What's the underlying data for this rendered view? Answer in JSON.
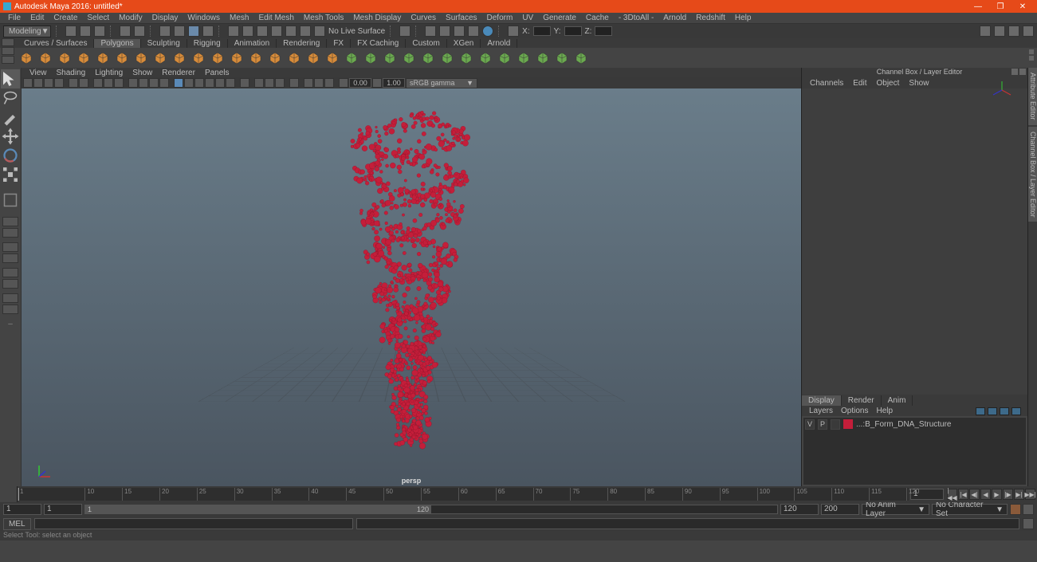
{
  "app": {
    "title": "Autodesk Maya 2016: untitled*"
  },
  "menubar": [
    "File",
    "Edit",
    "Create",
    "Select",
    "Modify",
    "Display",
    "Windows",
    "Mesh",
    "Edit Mesh",
    "Mesh Tools",
    "Mesh Display",
    "Curves",
    "Surfaces",
    "Deform",
    "UV",
    "Generate",
    "Cache",
    "- 3DtoAll -",
    "Arnold",
    "Redshift",
    "Help"
  ],
  "workspace": "Modeling",
  "status": {
    "snap_label": "No Live Surface",
    "x_label": "X:",
    "y_label": "Y:",
    "z_label": "Z:",
    "x_val": "",
    "y_val": "",
    "z_val": ""
  },
  "shelf_tabs": [
    "Curves / Surfaces",
    "Polygons",
    "Sculpting",
    "Rigging",
    "Animation",
    "Rendering",
    "FX",
    "FX Caching",
    "Custom",
    "XGen",
    "Arnold"
  ],
  "shelf_active": 1,
  "shelf_icon_color": "#d68b3a",
  "shelf_icon_color2": "#6aa84f",
  "vp_menus": [
    "View",
    "Shading",
    "Lighting",
    "Show",
    "Renderer",
    "Panels"
  ],
  "vp_toolbar": {
    "num1_label": "",
    "num1": "0.00",
    "num2_label": "",
    "num2": "1.00",
    "gamma_sel": "sRGB gamma"
  },
  "viewport": {
    "label": "persp",
    "dnaColor": "#c41e3a",
    "grid_color": "#333333",
    "bg_top": "#6a7d8a",
    "bg_bottom": "#4a5560"
  },
  "channel_box": {
    "title": "Channel Box / Layer Editor",
    "menus": [
      "Channels",
      "Edit",
      "Object",
      "Show"
    ]
  },
  "layer_tabs": [
    "Display",
    "Render",
    "Anim"
  ],
  "layer_active": 0,
  "layer_menus": [
    "Layers",
    "Options",
    "Help"
  ],
  "layer": {
    "row": {
      "v": "V",
      "p": "P",
      "blank": "",
      "name": "...:B_Form_DNA_Structure",
      "swatch": "#c41e3a"
    }
  },
  "right_vtabs": [
    "Attribute Editor",
    "Channel Box / Layer Editor"
  ],
  "timeline": {
    "ticks": [
      1,
      10,
      15,
      20,
      25,
      30,
      35,
      40,
      45,
      50,
      55,
      60,
      65,
      70,
      75,
      80,
      85,
      90,
      95,
      100,
      105,
      110,
      115,
      120
    ],
    "current": "1"
  },
  "range": {
    "start_outer": "1",
    "start_inner": "1",
    "end_inner": "120",
    "end_outer": "120",
    "fps": "200",
    "anim_layer": "No Anim Layer",
    "char_set": "No Character Set"
  },
  "cmd": {
    "lang": "MEL"
  },
  "helpline": "Select Tool: select an object"
}
